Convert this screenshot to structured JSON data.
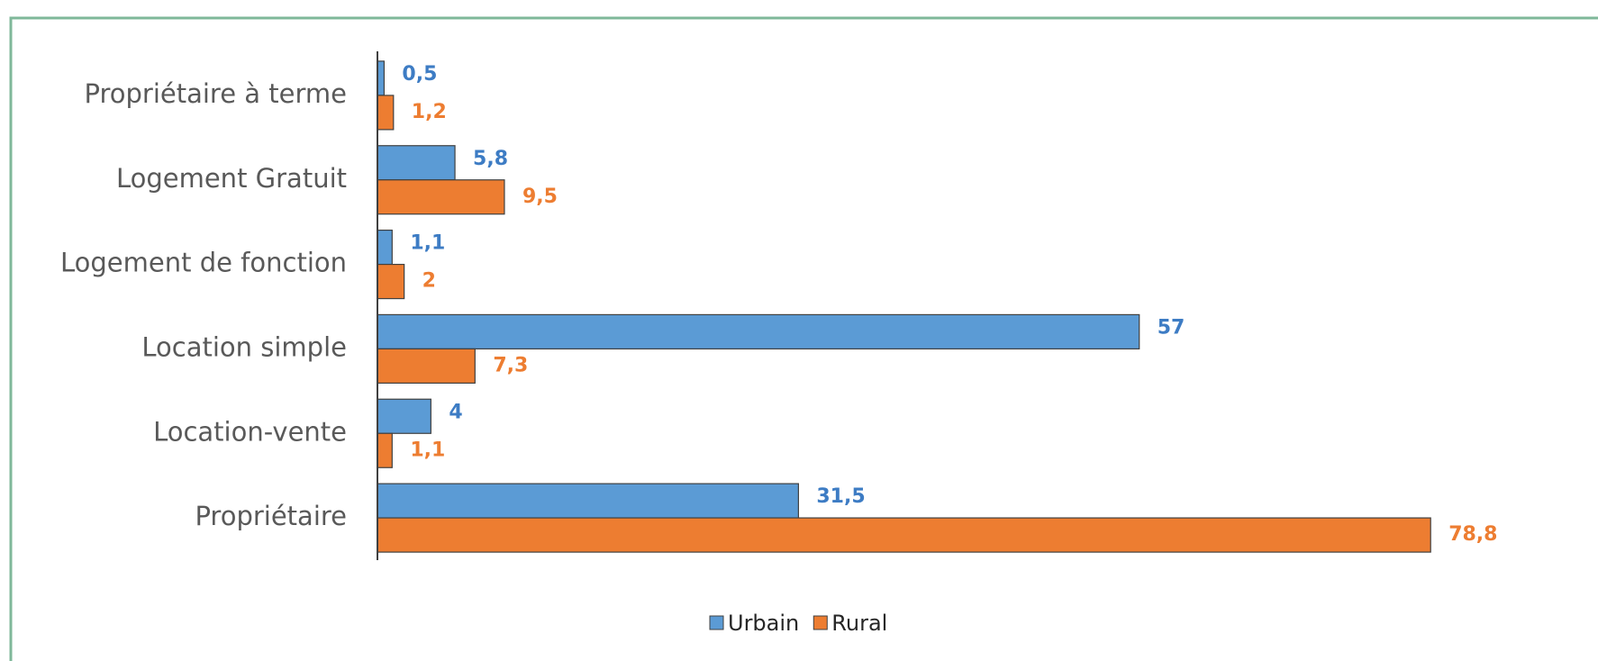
{
  "chart_data": {
    "type": "bar",
    "orientation": "horizontal",
    "categories": [
      "Propriétaire à terme",
      "Logement Gratuit",
      "Logement de fonction",
      "Location simple",
      "Location-vente",
      "Propriétaire"
    ],
    "series": [
      {
        "name": "Urbain",
        "color": "#5b9bd5",
        "label_color": "#3d7cc4",
        "values": [
          0.5,
          5.8,
          1.1,
          57,
          4,
          31.5
        ],
        "value_labels": [
          "0,5",
          "5,8",
          "1,1",
          "57",
          "4",
          "31,5"
        ]
      },
      {
        "name": "Rural",
        "color": "#ed7d31",
        "label_color": "#ed7d31",
        "values": [
          1.2,
          9.5,
          2,
          7.3,
          1.1,
          78.8
        ],
        "value_labels": [
          "1,2",
          "9,5",
          "2",
          "7,3",
          "1,1",
          "78,8"
        ]
      }
    ],
    "xlim": [
      0,
      80
    ],
    "legend": "bottom"
  }
}
